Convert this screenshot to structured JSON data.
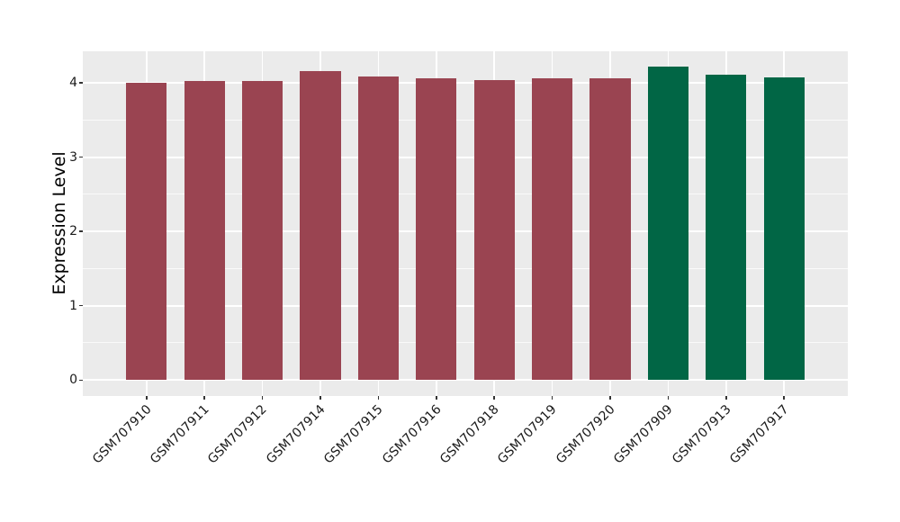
{
  "chart_data": {
    "type": "bar",
    "title": "",
    "xlabel": "",
    "ylabel": "Expression Level",
    "categories": [
      "GSM707910",
      "GSM707911",
      "GSM707912",
      "GSM707914",
      "GSM707915",
      "GSM707916",
      "GSM707918",
      "GSM707919",
      "GSM707920",
      "GSM707909",
      "GSM707913",
      "GSM707917"
    ],
    "values": [
      4.0,
      4.03,
      4.03,
      4.16,
      4.09,
      4.06,
      4.04,
      4.06,
      4.06,
      4.22,
      4.11,
      4.07
    ],
    "bar_colors": [
      "#9A4451",
      "#9A4451",
      "#9A4451",
      "#9A4451",
      "#9A4451",
      "#9A4451",
      "#9A4451",
      "#9A4451",
      "#9A4451",
      "#016645",
      "#016645",
      "#016645"
    ],
    "yticks": [
      0,
      1,
      2,
      3,
      4
    ],
    "yticks_minor": [
      0.5,
      1.5,
      2.5,
      3.5
    ],
    "ylim": [
      -0.215,
      4.425
    ],
    "legend": false,
    "grid": "horizontal major+minor and vertical category gridlines, white",
    "panel_bg": "#EBEBEB",
    "grid_color": "#FFFFFF",
    "tick_color": "#333333",
    "label_color": "#1a1a1a",
    "bar_width_frac": 0.7
  }
}
